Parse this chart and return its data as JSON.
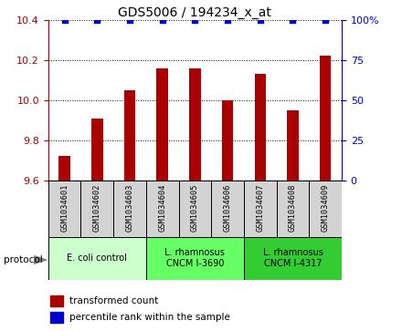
{
  "title": "GDS5006 / 194234_x_at",
  "samples": [
    "GSM1034601",
    "GSM1034602",
    "GSM1034603",
    "GSM1034604",
    "GSM1034605",
    "GSM1034606",
    "GSM1034607",
    "GSM1034608",
    "GSM1034609"
  ],
  "transformed_counts": [
    9.72,
    9.91,
    10.05,
    10.16,
    10.16,
    10.0,
    10.13,
    9.95,
    10.22
  ],
  "percentile_ranks": [
    100,
    100,
    100,
    100,
    100,
    100,
    100,
    100,
    100
  ],
  "ylim": [
    9.6,
    10.4
  ],
  "yticks_left": [
    9.6,
    9.8,
    10.0,
    10.2,
    10.4
  ],
  "yticks_right": [
    0,
    25,
    50,
    75,
    100
  ],
  "ytick_right_labels": [
    "0",
    "25",
    "50",
    "75",
    "100%"
  ],
  "ylim_right": [
    0,
    100
  ],
  "bar_color": "#AA0000",
  "dot_color": "#0000CC",
  "sample_box_color": "#d3d3d3",
  "protocol_groups": [
    {
      "label": "E. coli control",
      "indices": [
        0,
        1,
        2
      ],
      "color": "#ccffcc"
    },
    {
      "label": "L. rhamnosus\nCNCM I-3690",
      "indices": [
        3,
        4,
        5
      ],
      "color": "#66ff66"
    },
    {
      "label": "L. rhamnosus\nCNCM I-4317",
      "indices": [
        6,
        7,
        8
      ],
      "color": "#33cc33"
    }
  ],
  "legend_items": [
    {
      "label": "transformed count",
      "color": "#AA0000"
    },
    {
      "label": "percentile rank within the sample",
      "color": "#0000CC"
    }
  ],
  "xlabel_protocol": "protocol",
  "title_fontsize": 10,
  "tick_fontsize": 8,
  "bar_width": 0.35
}
